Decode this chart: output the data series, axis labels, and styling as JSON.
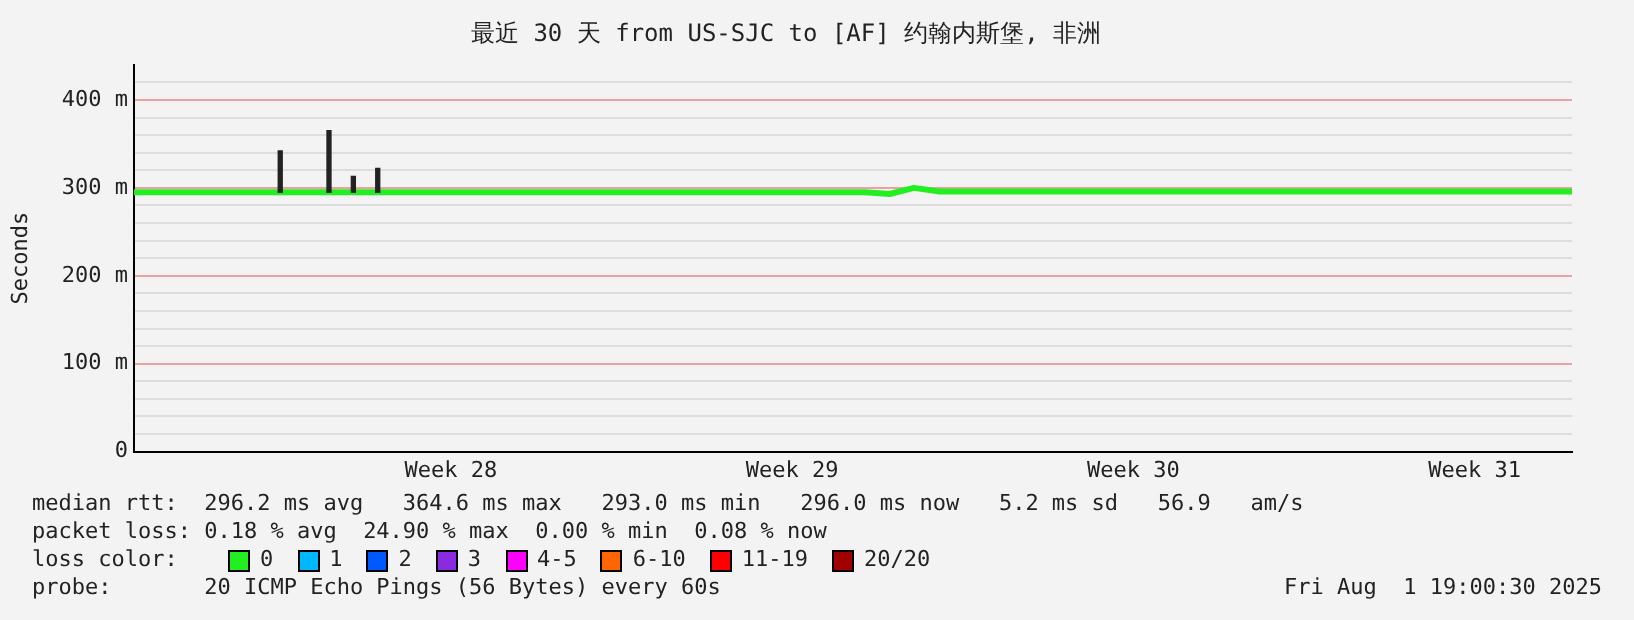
{
  "chart_data": {
    "type": "line",
    "title": "最近 30 天 from US-SJC to [AF] 约翰内斯堡, 非洲",
    "ylabel": "Seconds",
    "categories": [
      null,
      null,
      null,
      null,
      null,
      null,
      null,
      null,
      null,
      null,
      null,
      null,
      null,
      "Week 28",
      null,
      null,
      null,
      null,
      null,
      null,
      null,
      null,
      null,
      null,
      null,
      null,
      null,
      "Week 29",
      null,
      null,
      null,
      null,
      null,
      null,
      null,
      null,
      null,
      null,
      null,
      null,
      null,
      "Week 30",
      null,
      null,
      null,
      null,
      null,
      null,
      null,
      null,
      null,
      null,
      null,
      null,
      null,
      "Week 31",
      null,
      null,
      null,
      null
    ],
    "ylim": [
      0,
      440
    ],
    "yticks": [
      0,
      {
        "value": 20,
        "label": null
      },
      {
        "value": 40,
        "label": null
      },
      {
        "value": 60,
        "label": null
      },
      {
        "value": 80,
        "label": null
      },
      {
        "value": 100,
        "label": "100 m"
      },
      {
        "value": 120,
        "label": null
      },
      {
        "value": 140,
        "label": null
      },
      {
        "value": 160,
        "label": null
      },
      {
        "value": 180,
        "label": null
      },
      {
        "value": 200,
        "label": "200 m"
      },
      {
        "value": 220,
        "label": null
      },
      {
        "value": 240,
        "label": null
      },
      {
        "value": 260,
        "label": null
      },
      {
        "value": 280,
        "label": null
      },
      {
        "value": 300,
        "label": "300 m"
      },
      {
        "value": 320,
        "label": null
      },
      {
        "value": 340,
        "label": null
      },
      {
        "value": 360,
        "label": null
      },
      {
        "value": 380,
        "label": null
      },
      {
        "value": 400,
        "label": "400 m"
      },
      {
        "value": 420,
        "label": null
      }
    ],
    "grid": "y",
    "legend": false,
    "series": [
      {
        "type": "bar",
        "color": "#222222",
        "base": [
          null,
          null,
          null,
          null,
          null,
          null,
          295,
          null,
          295,
          295,
          295,
          null,
          null,
          null,
          null,
          null,
          null,
          null,
          null,
          null,
          null,
          null,
          null,
          null,
          null,
          null,
          null,
          null,
          null,
          null,
          null,
          null,
          null,
          null,
          null,
          null,
          null,
          null,
          null,
          null,
          null,
          null,
          null,
          null,
          null,
          null,
          null,
          null,
          null,
          null,
          null,
          null,
          null,
          null,
          null,
          null,
          null,
          null,
          null,
          null
        ],
        "values": [
          null,
          null,
          null,
          null,
          null,
          null,
          47,
          null,
          70,
          18,
          27,
          null,
          null,
          null,
          null,
          null,
          null,
          null,
          null,
          null,
          null,
          null,
          null,
          null,
          null,
          null,
          null,
          null,
          null,
          null,
          null,
          null,
          null,
          null,
          null,
          null,
          null,
          null,
          null,
          null,
          null,
          null,
          null,
          null,
          null,
          null,
          null,
          null,
          null,
          null,
          null,
          null,
          null,
          null,
          null,
          null,
          null,
          null,
          null,
          null
        ]
      },
      {
        "color": "#22ee22",
        "values": [
          295,
          295,
          295,
          295,
          295,
          295,
          295,
          295,
          295,
          295,
          295,
          295,
          295,
          295,
          295,
          295,
          295,
          295,
          295,
          295,
          295,
          295,
          295,
          295,
          295,
          295,
          295,
          295,
          295,
          295,
          295,
          293,
          300,
          296,
          296,
          296,
          296,
          296,
          296,
          296,
          296,
          296,
          296,
          296,
          296,
          296,
          296,
          296,
          296,
          296,
          296,
          296,
          296,
          296,
          296,
          296,
          296,
          296,
          296,
          296
        ]
      }
    ],
    "annotations": [
      "median rtt:  296.2 ms avg   364.6 ms max   293.0 ms min   296.0 ms now   5.2 ms sd   56.9   am/s",
      "packet loss: 0.18 % avg  24.90 % max  0.00 % min  0.08 % now",
      "loss color:",
      "0",
      "1",
      "2",
      "3",
      "4-5",
      "6-10",
      "11-19",
      "20/20",
      "probe:       20 ICMP Echo Pings (56 Bytes) every 60s",
      "Fri Aug  1 19:00:30 2025"
    ]
  }
}
